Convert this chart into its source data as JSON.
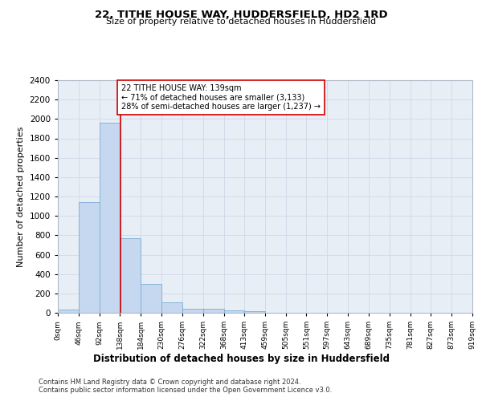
{
  "title1": "22, TITHE HOUSE WAY, HUDDERSFIELD, HD2 1RD",
  "title2": "Size of property relative to detached houses in Huddersfield",
  "xlabel": "Distribution of detached houses by size in Huddersfield",
  "ylabel": "Number of detached properties",
  "footnote1": "Contains HM Land Registry data © Crown copyright and database right 2024.",
  "footnote2": "Contains public sector information licensed under the Open Government Licence v3.0.",
  "bin_edges": [
    0,
    46,
    92,
    138,
    184,
    230,
    276,
    322,
    368,
    413,
    459,
    505,
    551,
    597,
    643,
    689,
    735,
    781,
    827,
    873,
    919
  ],
  "bar_values": [
    35,
    1140,
    1960,
    770,
    300,
    105,
    45,
    40,
    25,
    20,
    0,
    0,
    0,
    0,
    0,
    0,
    0,
    0,
    0,
    0
  ],
  "bar_color": "#c5d8ef",
  "bar_edge_color": "#7aadd4",
  "property_size": 139,
  "property_line_color": "#cc0000",
  "annotation_text": "22 TITHE HOUSE WAY: 139sqm\n← 71% of detached houses are smaller (3,133)\n28% of semi-detached houses are larger (1,237) →",
  "annotation_box_color": "#ffffff",
  "annotation_box_edge_color": "#cc0000",
  "ylim": [
    0,
    2400
  ],
  "yticks": [
    0,
    200,
    400,
    600,
    800,
    1000,
    1200,
    1400,
    1600,
    1800,
    2000,
    2200,
    2400
  ],
  "tick_labels": [
    "0sqm",
    "46sqm",
    "92sqm",
    "138sqm",
    "184sqm",
    "230sqm",
    "276sqm",
    "322sqm",
    "368sqm",
    "413sqm",
    "459sqm",
    "505sqm",
    "551sqm",
    "597sqm",
    "643sqm",
    "689sqm",
    "735sqm",
    "781sqm",
    "827sqm",
    "873sqm",
    "919sqm"
  ],
  "grid_color": "#d0d8e8",
  "background_color": "#e8eef5"
}
